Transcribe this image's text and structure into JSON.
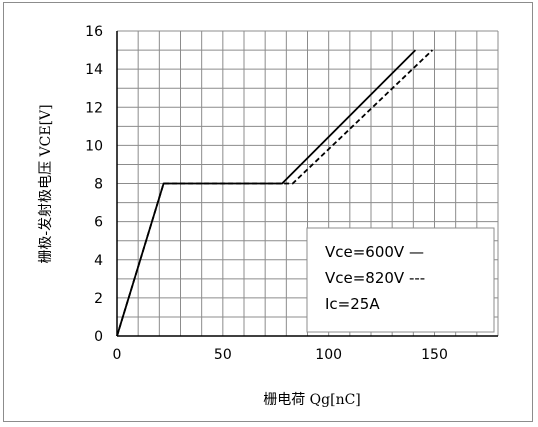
{
  "chart_data": {
    "type": "line",
    "xlabel": "栅电荷 Qg[nC]",
    "ylabel": "栅极-发射极电压 VCE[V]",
    "xlim": [
      0,
      180
    ],
    "ylim": [
      0,
      16
    ],
    "x_ticks": [
      "0",
      "50",
      "100",
      "150"
    ],
    "y_ticks": [
      "0",
      "2",
      "4",
      "6",
      "8",
      "10",
      "12",
      "14",
      "16"
    ],
    "grid": true,
    "legend_position": "bottom-right",
    "series": [
      {
        "name": "Vce=600V",
        "legend_text": "Vce=600V  —",
        "line_style": "solid",
        "x": [
          0,
          22,
          78,
          141
        ],
        "y": [
          0,
          8,
          8,
          15
        ]
      },
      {
        "name": "Vce=820V",
        "legend_text": "Vce=820V  ---",
        "line_style": "dashed",
        "x": [
          0,
          22,
          83,
          149
        ],
        "y": [
          0,
          8,
          8,
          15
        ]
      }
    ],
    "annotations": [
      "Ic=25A"
    ]
  },
  "colors": {
    "line": "#000000",
    "grid": "#8c8c8c",
    "frame": "#8c8c8c"
  }
}
